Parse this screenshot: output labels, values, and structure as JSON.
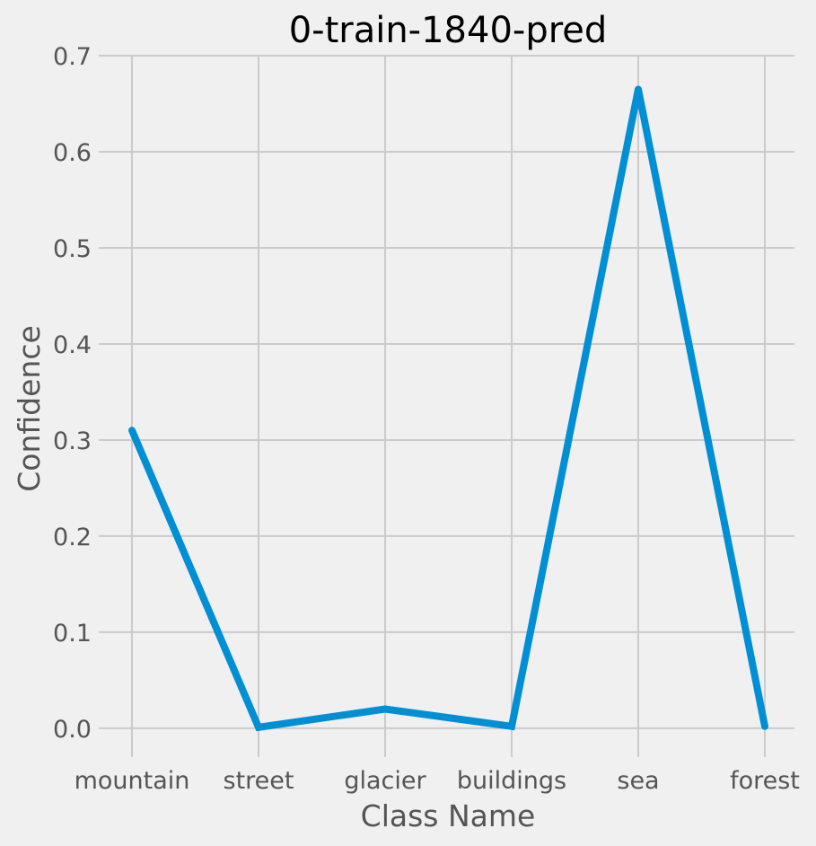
{
  "chart_data": {
    "type": "line",
    "title": "0-train-1840-pred",
    "xlabel": "Class Name",
    "ylabel": "Confidence",
    "categories": [
      "mountain",
      "street",
      "glacier",
      "buildings",
      "sea",
      "forest"
    ],
    "series": [
      {
        "values": [
          0.31,
          0.001,
          0.02,
          0.002,
          0.665,
          0.002
        ],
        "color": "#008fd5"
      }
    ],
    "ylim": [
      -0.03,
      0.7
    ],
    "yticks": [
      0.0,
      0.1,
      0.2,
      0.3,
      0.4,
      0.5,
      0.6,
      0.7
    ],
    "ytick_labels": [
      "0.0",
      "0.1",
      "0.2",
      "0.3",
      "0.4",
      "0.5",
      "0.6",
      "0.7"
    ],
    "grid": true
  }
}
